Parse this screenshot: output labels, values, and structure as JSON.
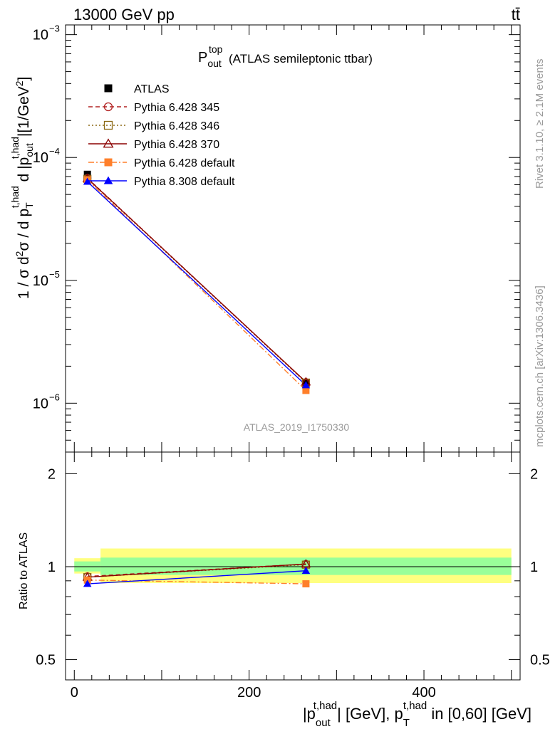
{
  "header": {
    "energy_label": "13000 GeV pp",
    "process_label": "tt̄"
  },
  "side": {
    "rivet_label": "Rivet 3.1.10, ≥ 2.1M events",
    "source_label": "mcplots.cern.ch [arXiv:1306.3436]"
  },
  "analysis_id": "ATLAS_2019_I1750330",
  "chart_data": [
    {
      "type": "line",
      "panel": "main",
      "title": {
        "base": "P",
        "sup": "top",
        "sub": "out",
        "suffix": "(ATLAS semileptonic ttbar)"
      },
      "ylabel": "1 / σ d²σ / d p_T^{t,had} d |p_out^{t,had}| [1/GeV²]",
      "yscale": "log",
      "ylim": [
        4e-07,
        0.0012
      ],
      "y_ticks": [
        {
          "value": 1e-06,
          "base": "10",
          "exp": "−6"
        },
        {
          "value": 1e-05,
          "base": "10",
          "exp": "−5"
        },
        {
          "value": 0.0001,
          "base": "10",
          "exp": "−4"
        },
        {
          "value": 0.001,
          "base": "10",
          "exp": "−3"
        }
      ],
      "xlim": [
        -10,
        510
      ],
      "legend_position": "top-left",
      "series": [
        {
          "name": "ATLAS",
          "style": "data",
          "marker": "square-filled",
          "color": "#000000",
          "x": [
            15,
            265
          ],
          "y": [
            7.3e-05,
            1.45e-06
          ]
        },
        {
          "name": "Pythia 6.428 345",
          "style": "dashed",
          "marker": "circle-open",
          "color": "#b22222",
          "x": [
            15,
            265
          ],
          "y": [
            6.8e-05,
            1.48e-06
          ]
        },
        {
          "name": "Pythia 6.428 346",
          "style": "dotted",
          "marker": "square-open",
          "color": "#8b6914",
          "x": [
            15,
            265
          ],
          "y": [
            6.7e-05,
            1.47e-06
          ]
        },
        {
          "name": "Pythia 6.428 370",
          "style": "solid",
          "marker": "triangle-open",
          "color": "#8b0000",
          "x": [
            15,
            265
          ],
          "y": [
            6.75e-05,
            1.49e-06
          ]
        },
        {
          "name": "Pythia 6.428 default",
          "style": "dashdot",
          "marker": "square-filled",
          "color": "#ff7f2a",
          "x": [
            15,
            265
          ],
          "y": [
            6.6e-05,
            1.27e-06
          ]
        },
        {
          "name": "Pythia 8.308 default",
          "style": "solid",
          "marker": "triangle-filled",
          "color": "#0000ff",
          "x": [
            15,
            265
          ],
          "y": [
            6.35e-05,
            1.4e-06
          ]
        }
      ]
    },
    {
      "type": "line",
      "panel": "ratio",
      "ylabel": "Ratio to ATLAS",
      "yscale": "log",
      "ylim": [
        0.43,
        2.35
      ],
      "y_ticks": [
        {
          "value": 0.5,
          "label": "0.5"
        },
        {
          "value": 1,
          "label": "1"
        },
        {
          "value": 2,
          "label": "2"
        }
      ],
      "xlim": [
        -10,
        510
      ],
      "x_ticks": [
        {
          "value": 0,
          "label": "0"
        },
        {
          "value": 200,
          "label": "200"
        },
        {
          "value": 400,
          "label": "400"
        }
      ],
      "xlabel": "|p_out^{t,had}| [GeV], p_T^{t,had} in [0,60] [GeV]",
      "bins": [
        {
          "x0": 0,
          "x1": 30,
          "band_inner": [
            0.965,
            1.04
          ],
          "band_outer": [
            0.95,
            1.065
          ]
        },
        {
          "x0": 30,
          "x1": 500,
          "band_inner": [
            0.94,
            1.07
          ],
          "band_outer": [
            0.885,
            1.145
          ]
        }
      ],
      "series": [
        {
          "name": "Pythia 6.428 345",
          "x": [
            15,
            265
          ],
          "y": [
            0.93,
            1.02
          ]
        },
        {
          "name": "Pythia 6.428 346",
          "x": [
            15,
            265
          ],
          "y": [
            0.925,
            1.015
          ]
        },
        {
          "name": "Pythia 6.428 370",
          "x": [
            15,
            265
          ],
          "y": [
            0.925,
            1.02
          ]
        },
        {
          "name": "Pythia 6.428 default",
          "x": [
            15,
            265
          ],
          "y": [
            0.905,
            0.88
          ]
        },
        {
          "name": "Pythia 8.308 default",
          "x": [
            15,
            265
          ],
          "y": [
            0.88,
            0.97
          ]
        }
      ]
    }
  ]
}
